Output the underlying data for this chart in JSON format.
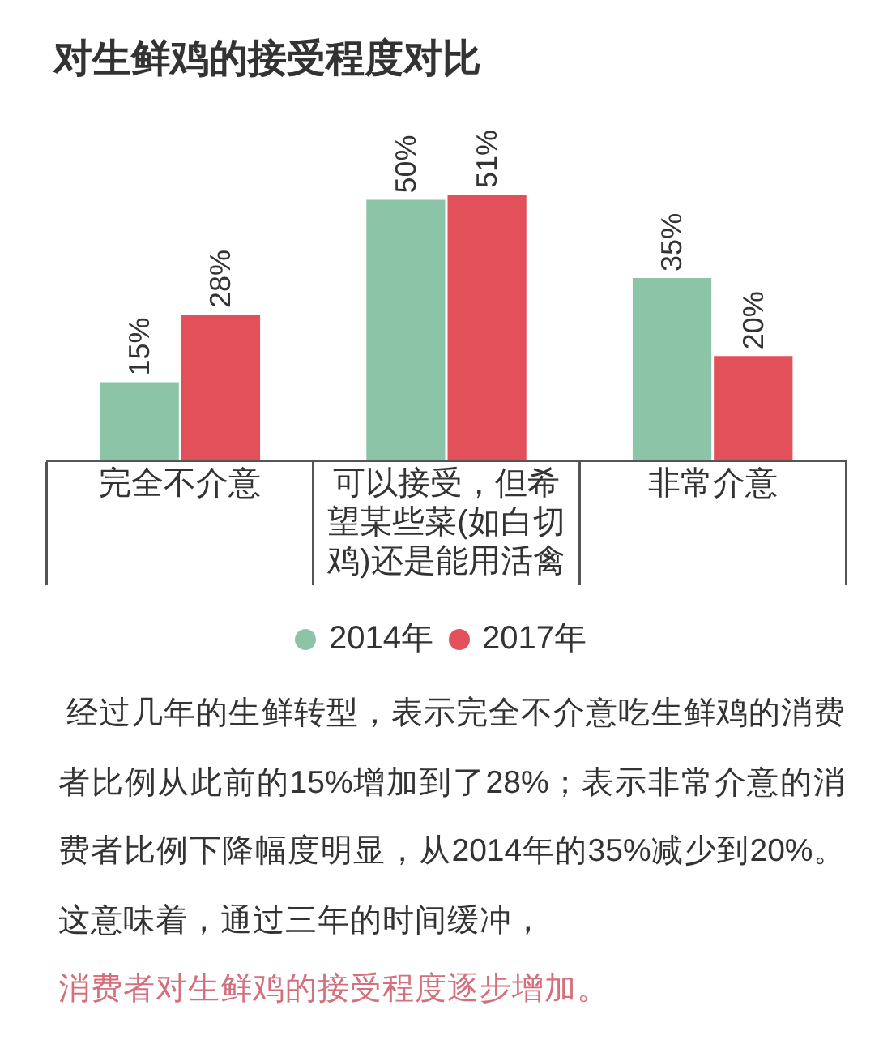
{
  "chart_data": {
    "type": "bar",
    "title": "对生鲜鸡的接受程度对比",
    "categories": [
      "完全不介意",
      "可以接受，但希望某些菜(如白切鸡)还是能用活禽",
      "非常介意"
    ],
    "series": [
      {
        "name": "2014年",
        "color": "#8cc4a7",
        "values": [
          15,
          50,
          35
        ],
        "value_labels": [
          "15%",
          "50%",
          "35%"
        ]
      },
      {
        "name": "2017年",
        "color": "#e2515a",
        "values": [
          28,
          51,
          20
        ],
        "value_labels": [
          "28%",
          "51%",
          "20%"
        ]
      }
    ],
    "legend": "bottom",
    "annotations": [
      "经过几年的生鲜转型，表示完全不介意吃生鲜鸡的消费者比例从此前的15%增加到了28%；表示非常介意的消费者比例下降幅度明显，从2014年的35%减少到20%。这意味着，通过三年的时间缓冲，",
      "消费者对生鲜鸡的接受程度逐步增加。"
    ]
  }
}
